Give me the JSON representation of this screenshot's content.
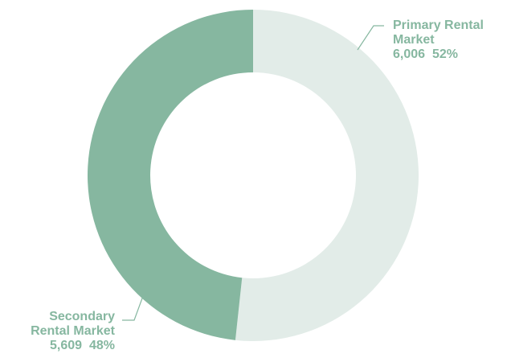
{
  "chart_data": {
    "type": "pie",
    "donut": true,
    "slices": [
      {
        "label_lines": [
          "Primary Rental",
          "Market"
        ],
        "value": 6006,
        "value_text": "6,006",
        "percent_text": "52%",
        "color": "#e2ece8"
      },
      {
        "label_lines": [
          "Secondary",
          "Rental Market"
        ],
        "value": 5609,
        "value_text": "5,609",
        "percent_text": "48%",
        "color": "#86b7a0"
      }
    ],
    "label_color": "#86b7a0",
    "leader_color": "#86b7a0"
  }
}
